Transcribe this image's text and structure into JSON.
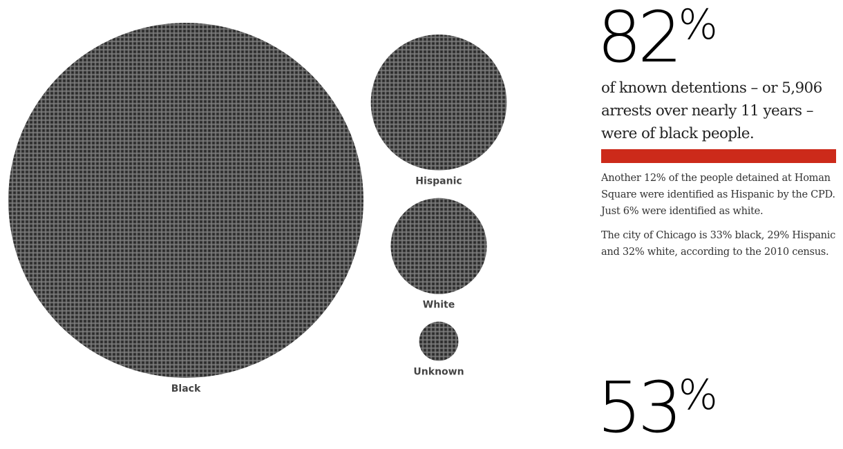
{
  "chart_data": {
    "type": "bubble-dot-matrix",
    "title": "",
    "unit": "share of known detentions at Homan Square",
    "categories": [
      "Black",
      "Hispanic",
      "White",
      "Unknown"
    ],
    "values": [
      82,
      12,
      6,
      1
    ],
    "value_units": "percent",
    "colors": {
      "dot": "#4a4a4a",
      "dot_dark": "#262626",
      "grid_line": "#8a8a8a"
    },
    "legend": "none",
    "grid": false
  },
  "stat1": {
    "number": "82",
    "percent_sign": "%",
    "lede": "of known detentions – or 5,906 arrests over nearly 11 years – were of black people."
  },
  "accent_color": "#cc2a1a",
  "paragraphs": [
    "Another 12% of the people detained at Homan Square were identified as Hispanic by the CPD. Just 6% were identified as white.",
    "The city of Chicago is 33% black, 29% Hispanic and 32% white, according to the 2010 census."
  ],
  "stat2": {
    "number": "53",
    "percent_sign": "%"
  }
}
